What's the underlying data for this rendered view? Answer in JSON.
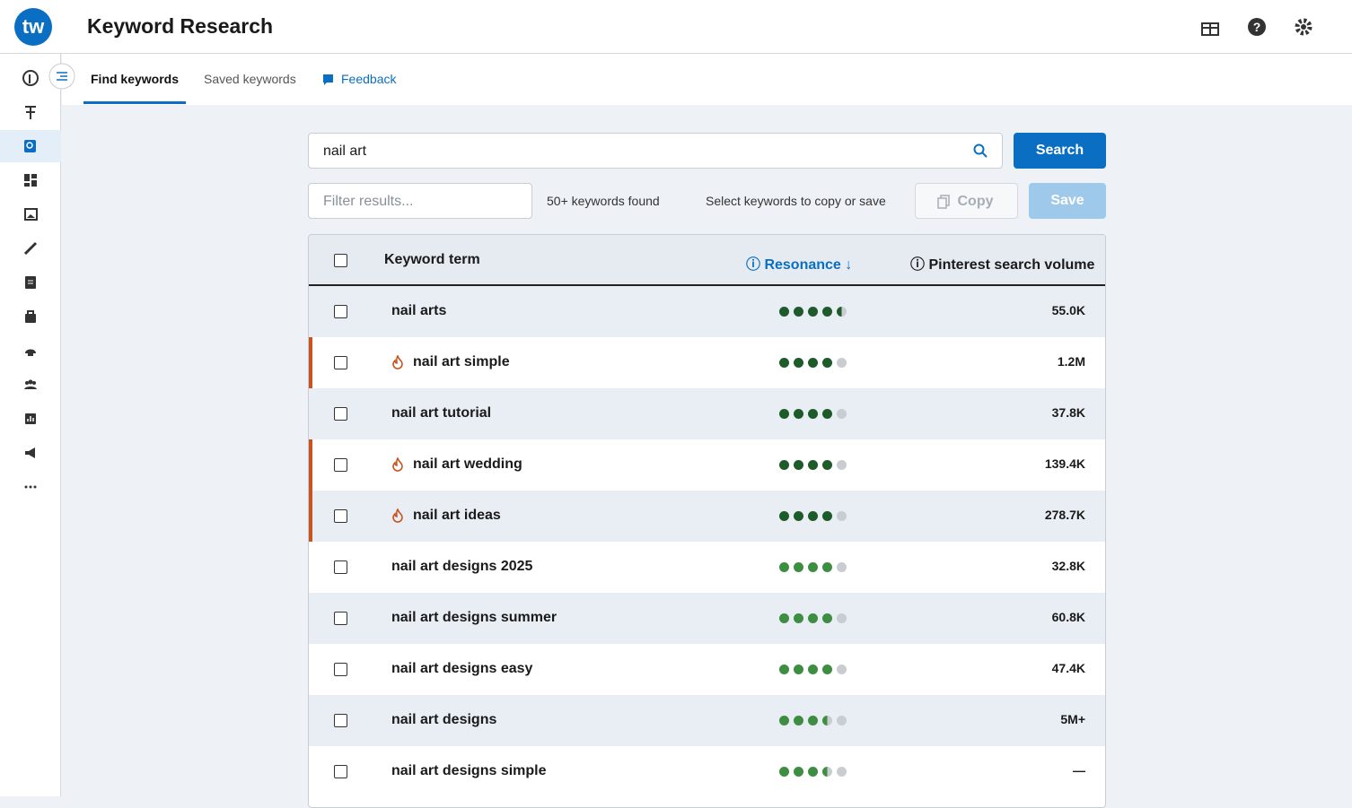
{
  "header": {
    "title": "Keyword Research"
  },
  "tabs": [
    "Find keywords",
    "Saved keywords",
    "Feedback"
  ],
  "search": {
    "query": "nail art",
    "button": "Search"
  },
  "toolbar": {
    "filter_placeholder": "Filter results...",
    "count": "50+ keywords found",
    "hint": "Select keywords to copy or save",
    "copy": "Copy",
    "save": "Save"
  },
  "table": {
    "columns": [
      "Keyword term",
      "Resonance",
      "Pinterest search volume"
    ],
    "rows": [
      {
        "keyword": "nail arts",
        "trending": false,
        "resonance": 4.5,
        "dot_color": "#1e5b2a",
        "volume": "55.0K"
      },
      {
        "keyword": "nail art simple",
        "trending": true,
        "resonance": 4,
        "dot_color": "#1e5b2a",
        "volume": "1.2M"
      },
      {
        "keyword": "nail art tutorial",
        "trending": false,
        "resonance": 4,
        "dot_color": "#1e5b2a",
        "volume": "37.8K"
      },
      {
        "keyword": "nail art wedding",
        "trending": true,
        "resonance": 4,
        "dot_color": "#1e5b2a",
        "volume": "139.4K"
      },
      {
        "keyword": "nail art ideas",
        "trending": true,
        "resonance": 4,
        "dot_color": "#1e5b2a",
        "volume": "278.7K"
      },
      {
        "keyword": "nail art designs 2025",
        "trending": false,
        "resonance": 4,
        "dot_color": "#3e8e41",
        "volume": "32.8K"
      },
      {
        "keyword": "nail art designs summer",
        "trending": false,
        "resonance": 4,
        "dot_color": "#3e8e41",
        "volume": "60.8K"
      },
      {
        "keyword": "nail art designs easy",
        "trending": false,
        "resonance": 4,
        "dot_color": "#3e8e41",
        "volume": "47.4K"
      },
      {
        "keyword": "nail art designs",
        "trending": false,
        "resonance": 3.5,
        "dot_color": "#3e8e41",
        "volume": "5M+"
      },
      {
        "keyword": "nail art designs simple",
        "trending": false,
        "resonance": 3.5,
        "dot_color": "#3e8e41",
        "volume": "—"
      }
    ]
  }
}
